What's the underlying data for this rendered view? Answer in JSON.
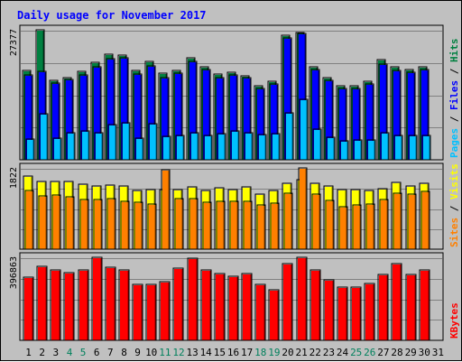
{
  "title": "Daily usage for November 2017",
  "colors": {
    "title": "#0000ff",
    "background": "#c0c0c0",
    "plot_background": "#c0c0c0",
    "gridline": "#808080",
    "weekday": "#000000",
    "weekend": "#00805c",
    "hits": "#008040",
    "files": "#0000ff",
    "pages": "#00c0ff",
    "visits": "#ffff00",
    "sites": "#ff8000",
    "kbytes": "#ff0000"
  },
  "panels": {
    "top": {
      "max_label": "27377",
      "legend": [
        {
          "text": "Pages",
          "color": "#00c0ff"
        },
        {
          "text": " / ",
          "color": "#000000"
        },
        {
          "text": "Files",
          "color": "#0000ff"
        },
        {
          "text": " / ",
          "color": "#000000"
        },
        {
          "text": "Hits",
          "color": "#008040"
        }
      ]
    },
    "middle": {
      "max_label": "1822",
      "legend": [
        {
          "text": "Sites",
          "color": "#ff8000"
        },
        {
          "text": " / ",
          "color": "#000000"
        },
        {
          "text": "Visits",
          "color": "#ffff00"
        }
      ]
    },
    "bottom": {
      "max_label": "396863",
      "legend": [
        {
          "text": "KBytes",
          "color": "#ff0000"
        }
      ]
    }
  },
  "chart_data": {
    "type": "bar",
    "title": "Daily usage for November 2017",
    "categories": [
      "1",
      "2",
      "3",
      "4",
      "5",
      "6",
      "7",
      "8",
      "9",
      "10",
      "11",
      "12",
      "13",
      "14",
      "15",
      "16",
      "17",
      "18",
      "19",
      "20",
      "21",
      "22",
      "23",
      "24",
      "25",
      "26",
      "27",
      "28",
      "29",
      "30",
      "31"
    ],
    "weekend_days": [
      4,
      5,
      11,
      12,
      18,
      19,
      25,
      26
    ],
    "panels": [
      {
        "name": "top",
        "ymax": 27377,
        "series": [
          {
            "name": "Hits",
            "values": [
              18700,
              27377,
              16700,
              17300,
              18500,
              20500,
              22200,
              22000,
              18800,
              20700,
              18200,
              18700,
              21500,
              19600,
              18000,
              18400,
              17700,
              15600,
              16400,
              26300,
              26800,
              19500,
              17300,
              15500,
              15600,
              16400,
              21000,
              19500,
              19000,
              19500,
              0
            ]
          },
          {
            "name": "Files",
            "values": [
              17800,
              18500,
              16100,
              16800,
              17900,
              19500,
              21300,
              21400,
              18000,
              19700,
              17300,
              18200,
              20600,
              18900,
              17300,
              17800,
              17200,
              15000,
              15900,
              25600,
              26700,
              18900,
              16600,
              14900,
              14900,
              15800,
              20100,
              18800,
              18300,
              18900,
              0
            ]
          },
          {
            "name": "Pages",
            "values": [
              4300,
              9600,
              4400,
              5600,
              5900,
              5600,
              7300,
              7600,
              4400,
              7400,
              4800,
              4900,
              5500,
              5000,
              5300,
              5900,
              5500,
              5200,
              5300,
              9800,
              12600,
              6400,
              4500,
              3800,
              4100,
              4000,
              5500,
              5000,
              4900,
              4900,
              0
            ]
          }
        ]
      },
      {
        "name": "middle",
        "ymax": 1822,
        "series": [
          {
            "name": "Visits",
            "values": [
              1630,
              1510,
              1510,
              1510,
              1450,
              1410,
              1440,
              1420,
              1300,
              1330,
              1330,
              1330,
              1400,
              1320,
              1380,
              1330,
              1390,
              1230,
              1310,
              1470,
              1560,
              1480,
              1410,
              1330,
              1340,
              1310,
              1350,
              1500,
              1410,
              1480,
              0
            ]
          },
          {
            "name": "Sites",
            "values": [
              1310,
              1180,
              1200,
              1170,
              1110,
              1100,
              1120,
              1070,
              1040,
              1000,
              1790,
              1120,
              1120,
              1050,
              1070,
              1070,
              1060,
              980,
              1020,
              1240,
              1822,
              1230,
              1080,
              950,
              990,
              1000,
              1110,
              1250,
              1230,
              1290,
              0
            ]
          }
        ]
      },
      {
        "name": "bottom",
        "ymax": 396863,
        "series": [
          {
            "name": "KBytes",
            "values": [
              300000,
              353000,
              335000,
              323000,
              334000,
              396863,
              348000,
              336000,
              266000,
              266000,
              281000,
              346000,
              393000,
              336000,
              318000,
              307000,
              320000,
              265000,
              242000,
              366000,
              396863,
              335000,
              289000,
              253000,
              254000,
              269000,
              315000,
              366000,
              314000,
              334000,
              0
            ]
          }
        ]
      }
    ]
  }
}
